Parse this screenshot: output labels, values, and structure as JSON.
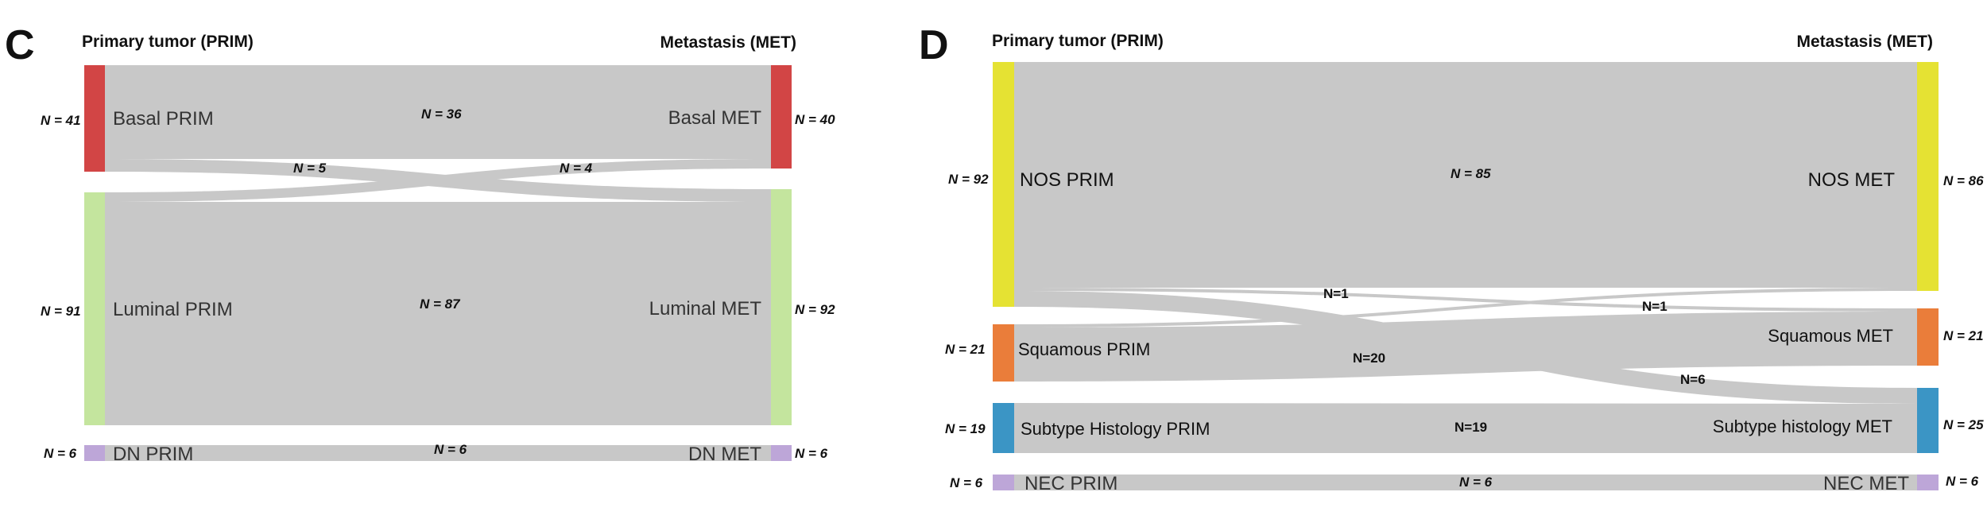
{
  "chart_data": [
    {
      "type": "sankey",
      "panel": "C",
      "left_header": "Primary tumor (PRIM)",
      "right_header": "Metastasis (MET)",
      "left_nodes": [
        {
          "label": "Basal PRIM",
          "n_label": "N = 41",
          "value": 41,
          "color": "#d24545"
        },
        {
          "label": "Luminal PRIM",
          "n_label": "N = 91",
          "value": 91,
          "color": "#c4e59e"
        },
        {
          "label": "DN PRIM",
          "n_label": "N = 6",
          "value": 6,
          "color": "#bda6d8"
        }
      ],
      "right_nodes": [
        {
          "label": "Basal MET",
          "n_label": "N = 40",
          "value": 40,
          "color": "#d24545"
        },
        {
          "label": "Luminal MET",
          "n_label": "N = 92",
          "value": 92,
          "color": "#c4e59e"
        },
        {
          "label": "DN MET",
          "n_label": "N = 6",
          "value": 6,
          "color": "#bda6d8"
        }
      ],
      "flows": [
        {
          "from": 0,
          "to": 0,
          "value": 36,
          "n_label": "N = 36"
        },
        {
          "from": 0,
          "to": 1,
          "value": 5,
          "n_label": "N = 5"
        },
        {
          "from": 1,
          "to": 0,
          "value": 4,
          "n_label": "N = 4"
        },
        {
          "from": 1,
          "to": 1,
          "value": 87,
          "n_label": "N = 87"
        },
        {
          "from": 2,
          "to": 2,
          "value": 6,
          "n_label": "N = 6"
        }
      ]
    },
    {
      "type": "sankey",
      "panel": "D",
      "left_header": "Primary tumor (PRIM)",
      "right_header": "Metastasis (MET)",
      "left_nodes": [
        {
          "label": "NOS PRIM",
          "n_label": "N = 92",
          "value": 92,
          "color": "#e5e233"
        },
        {
          "label": "Squamous PRIM",
          "n_label": "N = 21",
          "value": 21,
          "color": "#ea7d3a"
        },
        {
          "label": "Subtype Histology PRIM",
          "n_label": "N = 19",
          "value": 19,
          "color": "#3b95c5"
        },
        {
          "label": "NEC PRIM",
          "n_label": "N = 6",
          "value": 6,
          "color": "#bda6d8"
        }
      ],
      "right_nodes": [
        {
          "label": "NOS MET",
          "n_label": "N = 86",
          "value": 86,
          "color": "#e5e233"
        },
        {
          "label": "Squamous MET",
          "n_label": "N = 21",
          "value": 21,
          "color": "#ea7d3a"
        },
        {
          "label": "Subtype histology MET",
          "n_label": "N = 25",
          "value": 25,
          "color": "#3b95c5"
        },
        {
          "label": "NEC MET",
          "n_label": "N = 6",
          "value": 6,
          "color": "#bda6d8"
        }
      ],
      "flows": [
        {
          "from": 0,
          "to": 0,
          "value": 85,
          "n_label": "N = 85"
        },
        {
          "from": 0,
          "to": 1,
          "value": 1,
          "n_label": "N=1"
        },
        {
          "from": 0,
          "to": 2,
          "value": 6,
          "n_label": "N=6"
        },
        {
          "from": 1,
          "to": 0,
          "value": 1,
          "n_label": "N=1"
        },
        {
          "from": 1,
          "to": 1,
          "value": 20,
          "n_label": "N=20"
        },
        {
          "from": 2,
          "to": 2,
          "value": 19,
          "n_label": "N=19"
        },
        {
          "from": 3,
          "to": 3,
          "value": 6,
          "n_label": "N = 6"
        }
      ]
    }
  ]
}
